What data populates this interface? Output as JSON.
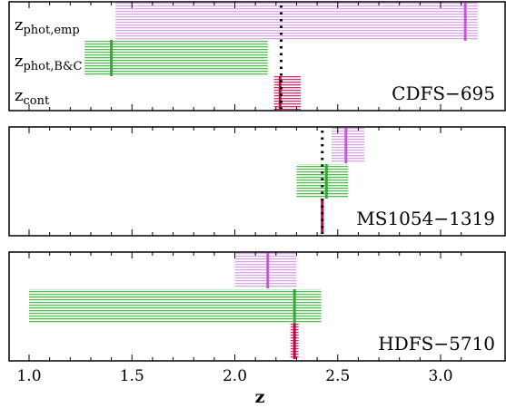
{
  "chart_data": {
    "type": "range",
    "xlabel": "z",
    "xlim": [
      0.9,
      3.2
    ],
    "x_ticks": [
      "1.0",
      "1.5",
      "2.0",
      "2.5",
      "3.0"
    ],
    "row_labels": [
      {
        "base": "z",
        "sub": "phot,emp"
      },
      {
        "base": "z",
        "sub": "phot,B&C"
      },
      {
        "base": "z",
        "sub": "cont"
      }
    ],
    "series_colors": {
      "phot_emp": "#cc55dd",
      "phot_bc": "#33aa33",
      "cont": "#cc0044"
    },
    "panels": [
      {
        "name": "CDFS−695",
        "spec_z": 2.225,
        "ranges": [
          {
            "series": "phot_emp",
            "low": 1.42,
            "high": 3.18,
            "best": 3.12
          },
          {
            "series": "phot_bc",
            "low": 1.27,
            "high": 2.16,
            "best": 1.4
          },
          {
            "series": "cont",
            "low": 2.19,
            "high": 2.32,
            "best": 2.22
          }
        ]
      },
      {
        "name": "MS1054−1319",
        "spec_z": 2.425,
        "ranges": [
          {
            "series": "phot_emp",
            "low": 2.47,
            "high": 2.63,
            "best": 2.54
          },
          {
            "series": "phot_bc",
            "low": 2.3,
            "high": 2.55,
            "best": 2.445
          },
          {
            "series": "cont",
            "low": 2.42,
            "high": 2.43,
            "best": 2.425
          }
        ]
      },
      {
        "name": "HDFS−5710",
        "spec_z": null,
        "ranges": [
          {
            "series": "phot_emp",
            "low": 2.0,
            "high": 2.3,
            "best": 2.16
          },
          {
            "series": "phot_bc",
            "low": 1.0,
            "high": 2.42,
            "best": 2.29
          },
          {
            "series": "cont",
            "low": 2.27,
            "high": 2.31,
            "best": 2.29
          }
        ]
      }
    ]
  }
}
